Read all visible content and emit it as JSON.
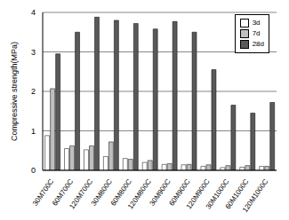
{
  "chart_data": {
    "type": "bar",
    "y_label": "Compressive strength(MPa)",
    "categories": [
      "30M700C",
      "60M700C",
      "120M700C",
      "30M800C",
      "60M800C",
      "120M800C",
      "30M900C",
      "60M900C",
      "120M900C",
      "30M1000C",
      "60M1000C",
      "120M1000C"
    ],
    "series": [
      {
        "name": "3d",
        "color": "#ffffff",
        "values": [
          0.88,
          0.55,
          0.52,
          0.35,
          0.3,
          0.2,
          0.15,
          0.14,
          0.1,
          0.07,
          0.08,
          0.1
        ]
      },
      {
        "name": "7d",
        "color": "#bfbfbf",
        "values": [
          2.07,
          0.62,
          0.62,
          0.72,
          0.28,
          0.25,
          0.17,
          0.15,
          0.14,
          0.12,
          0.12,
          0.1
        ]
      },
      {
        "name": "28d",
        "color": "#595959",
        "values": [
          2.95,
          3.5,
          3.88,
          3.8,
          3.72,
          3.58,
          3.77,
          3.5,
          2.55,
          1.65,
          1.45,
          1.72
        ]
      }
    ],
    "ylim": [
      0,
      4
    ],
    "yticks": [
      0,
      1,
      2,
      3,
      4
    ],
    "grid": true,
    "legend": "upper right"
  }
}
